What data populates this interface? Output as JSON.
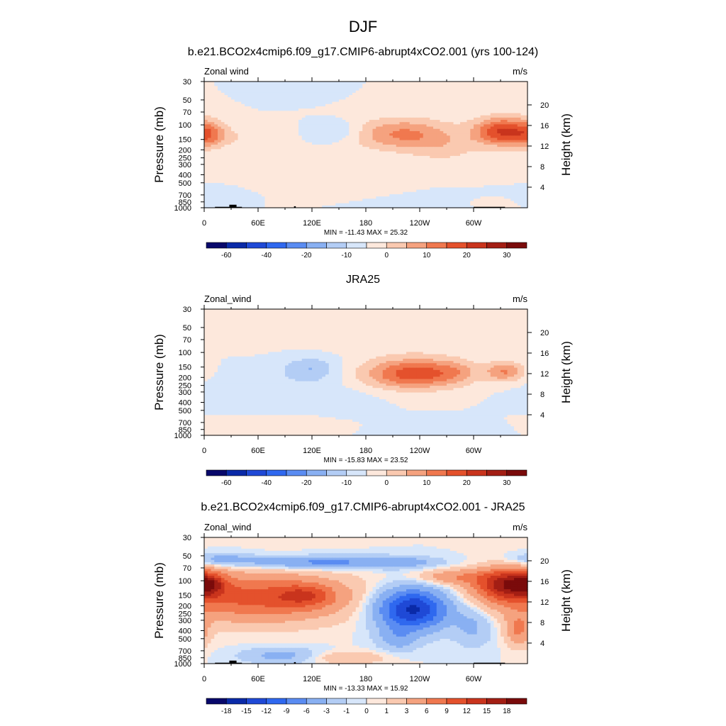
{
  "figure": {
    "title": "DJF"
  },
  "colormaps": {
    "fill": [
      "#08086b",
      "#0a2aa8",
      "#1f49d6",
      "#2f68ef",
      "#5a8cf2",
      "#89b0f2",
      "#b3cdf5",
      "#d7e6fa",
      "#fde8dc",
      "#fac9b0",
      "#f5a27f",
      "#f0784f",
      "#e4512c",
      "#c9341d",
      "#a31e14",
      "#7a0b0b"
    ]
  },
  "chart_data": [
    {
      "type": "contour",
      "title": "b.e21.BCO2x4cmip6.f09_g17.CMIP6-abrupt4xCO2.001 (yrs 100-124)",
      "left_label": "Zonal wind",
      "right_label": "m/s",
      "ylabel": "Pressure (mb)",
      "ylabel_right": "Height (km)",
      "x_ticks": [
        "0",
        "60E",
        "120E",
        "180",
        "120W",
        "60W"
      ],
      "x_tick_values": [
        0,
        60,
        120,
        180,
        240,
        300
      ],
      "xlim": [
        0,
        360
      ],
      "y_ticks": [
        "30",
        "50",
        "70",
        "100",
        "150",
        "200",
        "250",
        "300",
        "400",
        "500",
        "700",
        "850",
        "1000"
      ],
      "y_tick_values": [
        30,
        50,
        70,
        100,
        150,
        200,
        250,
        300,
        400,
        500,
        700,
        850,
        1000
      ],
      "ylim": [
        30,
        1000
      ],
      "y_scale": "log",
      "height_ticks": [
        "20",
        "16",
        "12",
        "8",
        "4"
      ],
      "height_tick_values": [
        20,
        16,
        12,
        8,
        4
      ],
      "stats": "MIN = -11.43  MAX =  25.32",
      "min": -11.43,
      "max": 25.32,
      "colorbar_labels": [
        "-60",
        "-40",
        "-20",
        "-10",
        "0",
        "10",
        "20",
        "30"
      ],
      "colorbar_label_positions": [
        1,
        3,
        5,
        7,
        9,
        11,
        13,
        15
      ],
      "terrain": true,
      "features": [
        {
          "lon": 5,
          "p": 130,
          "rx": 14,
          "rlogp": 0.28,
          "amp": 12
        },
        {
          "lon": 35,
          "p": 140,
          "rx": 30,
          "rlogp": 0.2,
          "amp": 4
        },
        {
          "lon": 98,
          "p": 40,
          "rx": 20,
          "rlogp": 0.15,
          "amp": -5
        },
        {
          "lon": 148,
          "p": 120,
          "rx": 18,
          "rlogp": 0.2,
          "amp": -7
        },
        {
          "lon": 222,
          "p": 130,
          "rx": 40,
          "rlogp": 0.32,
          "amp": 16
        },
        {
          "lon": 270,
          "p": 200,
          "rx": 28,
          "rlogp": 0.3,
          "amp": 5
        },
        {
          "lon": 332,
          "p": 120,
          "rx": 22,
          "rlogp": 0.28,
          "amp": 25
        },
        {
          "lon": 150,
          "p": 700,
          "rx": 45,
          "rlogp": 0.12,
          "amp": 4
        },
        {
          "lon": 20,
          "p": 750,
          "rx": 25,
          "rlogp": 0.1,
          "amp": -3
        },
        {
          "lon": 230,
          "p": 800,
          "rx": 45,
          "rlogp": 0.12,
          "amp": -3.5
        },
        {
          "lon": 320,
          "p": 850,
          "rx": 15,
          "rlogp": 0.08,
          "amp": 3
        }
      ]
    },
    {
      "type": "contour",
      "title": "JRA25",
      "left_label": "Zonal_wind",
      "right_label": "m/s",
      "ylabel": "Pressure (mb)",
      "ylabel_right": "Height (km)",
      "x_ticks": [
        "0",
        "60E",
        "120E",
        "180",
        "120W",
        "60W"
      ],
      "x_tick_values": [
        0,
        60,
        120,
        180,
        240,
        300
      ],
      "xlim": [
        0,
        360
      ],
      "y_ticks": [
        "30",
        "50",
        "70",
        "100",
        "150",
        "200",
        "250",
        "300",
        "400",
        "500",
        "700",
        "850",
        "1000"
      ],
      "y_tick_values": [
        30,
        50,
        70,
        100,
        150,
        200,
        250,
        300,
        400,
        500,
        700,
        850,
        1000
      ],
      "ylim": [
        30,
        1000
      ],
      "y_scale": "log",
      "height_ticks": [
        "20",
        "16",
        "12",
        "8",
        "4"
      ],
      "height_tick_values": [
        20,
        16,
        12,
        8,
        4
      ],
      "stats": "MIN = -15.83  MAX =  23.52",
      "min": -15.83,
      "max": 23.52,
      "colorbar_labels": [
        "-60",
        "-40",
        "-20",
        "-10",
        "0",
        "10",
        "20",
        "30"
      ],
      "colorbar_label_positions": [
        1,
        3,
        5,
        7,
        9,
        11,
        13,
        15
      ],
      "terrain": false,
      "features": [
        {
          "lon": 118,
          "p": 160,
          "rx": 22,
          "rlogp": 0.25,
          "amp": -10
        },
        {
          "lon": 60,
          "p": 300,
          "rx": 45,
          "rlogp": 0.35,
          "amp": -3.5
        },
        {
          "lon": 160,
          "p": 400,
          "rx": 25,
          "rlogp": 0.3,
          "amp": -3
        },
        {
          "lon": 232,
          "p": 180,
          "rx": 38,
          "rlogp": 0.3,
          "amp": 23
        },
        {
          "lon": 335,
          "p": 170,
          "rx": 15,
          "rlogp": 0.2,
          "amp": 15
        },
        {
          "lon": 280,
          "p": 170,
          "rx": 20,
          "rlogp": 0.25,
          "amp": 6
        },
        {
          "lon": 220,
          "p": 70,
          "rx": 80,
          "rlogp": 0.25,
          "amp": 4
        },
        {
          "lon": 80,
          "p": 750,
          "rx": 60,
          "rlogp": 0.15,
          "amp": 4
        },
        {
          "lon": 260,
          "p": 800,
          "rx": 50,
          "rlogp": 0.15,
          "amp": -4
        },
        {
          "lon": 30,
          "p": 40,
          "rx": 50,
          "rlogp": 0.15,
          "amp": 2.5
        }
      ]
    },
    {
      "type": "contour",
      "title": "b.e21.BCO2x4cmip6.f09_g17.CMIP6-abrupt4xCO2.001 - JRA25",
      "left_label": "Zonal_wind",
      "right_label": "m/s",
      "ylabel": "Pressure (mb)",
      "ylabel_right": "Height (km)",
      "x_ticks": [
        "0",
        "60E",
        "120E",
        "180",
        "120W",
        "60W"
      ],
      "x_tick_values": [
        0,
        60,
        120,
        180,
        240,
        300
      ],
      "xlim": [
        0,
        360
      ],
      "y_ticks": [
        "30",
        "50",
        "70",
        "100",
        "150",
        "200",
        "250",
        "300",
        "400",
        "500",
        "700",
        "850",
        "1000"
      ],
      "y_tick_values": [
        30,
        50,
        70,
        100,
        150,
        200,
        250,
        300,
        400,
        500,
        700,
        850,
        1000
      ],
      "ylim": [
        30,
        1000
      ],
      "y_scale": "log",
      "height_ticks": [
        "20",
        "16",
        "12",
        "8",
        "4"
      ],
      "height_tick_values": [
        20,
        16,
        12,
        8,
        4
      ],
      "stats": "MIN = -13.33  MAX =  15.92",
      "min": -13.33,
      "max": 15.92,
      "colorbar_labels": [
        "-18",
        "-15",
        "-12",
        "-9",
        "-6",
        "-3",
        "-1",
        "0",
        "1",
        "3",
        "6",
        "9",
        "12",
        "15",
        "18"
      ],
      "colorbar_label_positions": [
        1,
        2,
        3,
        4,
        5,
        6,
        7,
        8,
        9,
        10,
        11,
        12,
        13,
        14,
        15
      ],
      "terrain": true,
      "features": [
        {
          "lon": 60,
          "p": 160,
          "rx": 70,
          "rlogp": 0.45,
          "amp": 10
        },
        {
          "lon": 112,
          "p": 150,
          "rx": 22,
          "rlogp": 0.22,
          "amp": 6
        },
        {
          "lon": 5,
          "p": 110,
          "rx": 12,
          "rlogp": 0.2,
          "amp": 7
        },
        {
          "lon": 232,
          "p": 220,
          "rx": 28,
          "rlogp": 0.4,
          "amp": -16
        },
        {
          "lon": 215,
          "p": 500,
          "rx": 15,
          "rlogp": 0.25,
          "amp": -4
        },
        {
          "lon": 300,
          "p": 350,
          "rx": 15,
          "rlogp": 0.4,
          "amp": -3.5
        },
        {
          "lon": 340,
          "p": 110,
          "rx": 25,
          "rlogp": 0.3,
          "amp": 15
        },
        {
          "lon": 280,
          "p": 90,
          "rx": 30,
          "rlogp": 0.15,
          "amp": 5
        },
        {
          "lon": 130,
          "p": 60,
          "rx": 60,
          "rlogp": 0.12,
          "amp": -7
        },
        {
          "lon": 20,
          "p": 55,
          "rx": 25,
          "rlogp": 0.12,
          "amp": -4
        },
        {
          "lon": 220,
          "p": 60,
          "rx": 30,
          "rlogp": 0.12,
          "amp": -3
        },
        {
          "lon": 85,
          "p": 800,
          "rx": 30,
          "rlogp": 0.15,
          "amp": -4
        },
        {
          "lon": 160,
          "p": 850,
          "rx": 30,
          "rlogp": 0.12,
          "amp": 3
        },
        {
          "lon": 350,
          "p": 400,
          "rx": 10,
          "rlogp": 0.3,
          "amp": 6
        }
      ]
    }
  ]
}
